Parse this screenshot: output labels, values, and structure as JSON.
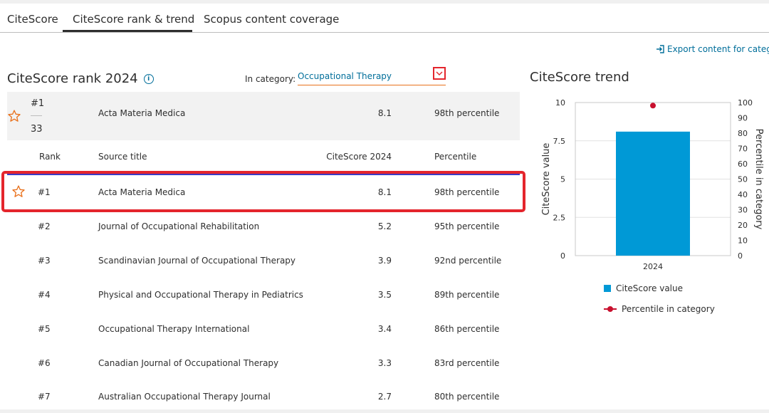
{
  "tabs": [
    {
      "label": "CiteScore"
    },
    {
      "label": "CiteScore rank & trend"
    },
    {
      "label": "Scopus content coverage"
    }
  ],
  "export_label": "Export content for catego",
  "rank": {
    "title": "CiteScore rank 2024",
    "category_label": "In category:",
    "category_value": "Occupational Therapy",
    "summary": {
      "rank": "#1",
      "total": "33",
      "title": "Acta Materia Medica",
      "score": "8.1",
      "percentile": "98th percentile"
    },
    "columns": {
      "rank": "Rank",
      "title": "Source title",
      "score": "CiteScore 2024",
      "percentile": "Percentile"
    },
    "rows": [
      {
        "rank": "#1",
        "title": "Acta Materia Medica",
        "score": "8.1",
        "percentile": "98th percentile",
        "starred": true
      },
      {
        "rank": "#2",
        "title": "Journal of Occupational Rehabilitation",
        "score": "5.2",
        "percentile": "95th percentile"
      },
      {
        "rank": "#3",
        "title": "Scandinavian Journal of Occupational Therapy",
        "score": "3.9",
        "percentile": "92nd percentile"
      },
      {
        "rank": "#4",
        "title": "Physical and Occupational Therapy in Pediatrics",
        "score": "3.5",
        "percentile": "89th percentile"
      },
      {
        "rank": "#5",
        "title": "Occupational Therapy International",
        "score": "3.4",
        "percentile": "86th percentile"
      },
      {
        "rank": "#6",
        "title": "Canadian Journal of Occupational Therapy",
        "score": "3.3",
        "percentile": "83rd percentile"
      },
      {
        "rank": "#7",
        "title": "Australian Occupational Therapy Journal",
        "score": "2.7",
        "percentile": "80th percentile"
      }
    ]
  },
  "colors": {
    "accent_orange": "#e9711c",
    "link_blue": "#006e9a",
    "bar_blue": "#0099d6",
    "dot_red": "#c8102e",
    "highlight_red": "#e4252c"
  },
  "trend": {
    "title": "CiteScore trend",
    "chart_data": {
      "type": "bar",
      "categories": [
        "2024"
      ],
      "series": [
        {
          "name": "CiteScore value",
          "values": [
            8.1
          ],
          "axis": "left"
        },
        {
          "name": "Percentile in category",
          "values": [
            98
          ],
          "axis": "right",
          "style": "point"
        }
      ],
      "ylabel": "CiteScore value",
      "ylabel_right": "Percentile in category",
      "ylim": [
        0,
        10
      ],
      "yticks": [
        "0",
        "2.5",
        "5",
        "7.5",
        "10"
      ],
      "ylim_right": [
        0,
        100
      ],
      "yticks_right": [
        "0",
        "10",
        "20",
        "30",
        "40",
        "50",
        "60",
        "70",
        "80",
        "90",
        "100"
      ],
      "grid": true,
      "legend": "bottom"
    }
  }
}
